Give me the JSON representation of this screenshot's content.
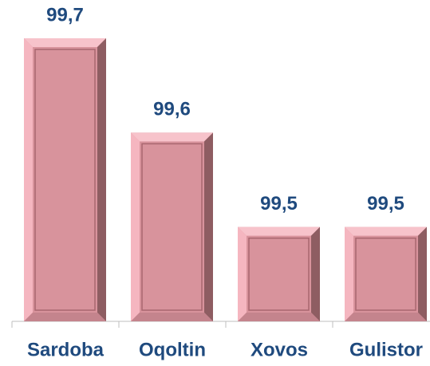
{
  "chart_data": {
    "type": "bar",
    "categories": [
      "Sardoba",
      "Oqoltin",
      "Xovos",
      "Gulistor"
    ],
    "values": [
      99.7,
      99.6,
      99.5,
      99.5
    ],
    "value_labels": [
      "99,7",
      "99,6",
      "99,5",
      "99,5"
    ],
    "color": "#d8939c",
    "ylim": [
      99.4,
      99.7
    ]
  }
}
